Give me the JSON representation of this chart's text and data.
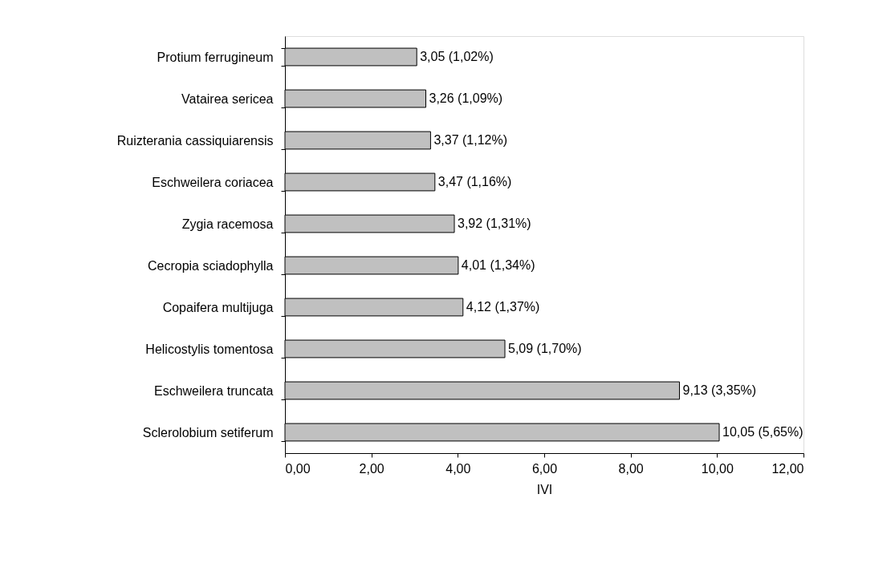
{
  "chart_data": {
    "type": "bar",
    "orientation": "horizontal",
    "xlabel": "IVI",
    "categories": [
      "Protium ferrugineum",
      "Vatairea sericea",
      "Ruizterania cassiquiarensis",
      "Eschweilera coriacea",
      "Zygia racemosa",
      "Cecropia sciadophylla",
      "Copaifera multijuga",
      "Helicostylis tomentosa",
      "Eschweilera truncata",
      "Sclerolobium setiferum"
    ],
    "values": [
      3.05,
      3.26,
      3.37,
      3.47,
      3.92,
      4.01,
      4.12,
      5.09,
      9.13,
      10.05
    ],
    "value_labels": [
      "3,05 (1,02%)",
      "3,26 (1,09%)",
      "3,37 (1,12%)",
      "3,47 (1,16%)",
      "3,92 (1,31%)",
      "4,01 (1,34%)",
      "4,12 (1,37%)",
      "5,09 (1,70%)",
      "9,13 (3,35%)",
      "10,05 (5,65%)"
    ],
    "color": "#c0c0c0",
    "xlim": [
      0,
      12
    ],
    "xticks": [
      {
        "value": 0,
        "label": "0,00"
      },
      {
        "value": 2,
        "label": "2,00"
      },
      {
        "value": 4,
        "label": "4,00"
      },
      {
        "value": 6,
        "label": "6,00"
      },
      {
        "value": 8,
        "label": "8,00"
      },
      {
        "value": 10,
        "label": "10,00"
      },
      {
        "value": 12,
        "label": "12,00"
      }
    ],
    "grid": false
  }
}
